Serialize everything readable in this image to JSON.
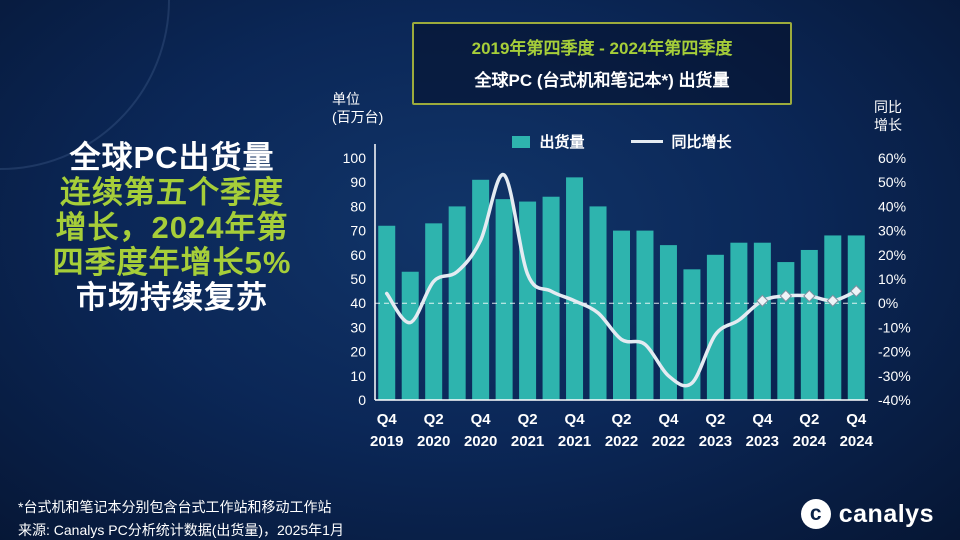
{
  "colors": {
    "background_center": "#113569",
    "background_edge": "#061634",
    "bar": "#2eb4ae",
    "line": "#e4ebf2",
    "accent_green": "#a6ce39",
    "box_border": "#9cab3c"
  },
  "headline": {
    "lines": [
      {
        "text": "全球PC出货量",
        "color": "white"
      },
      {
        "text": "连续第五个季度",
        "color": "green"
      },
      {
        "text": "增长，2024年第",
        "color": "green"
      },
      {
        "text": "四季度年增长5%",
        "color": "green"
      },
      {
        "text": "市场持续复苏",
        "color": "white"
      }
    ]
  },
  "title_box": {
    "line1": "2019年第四季度 - 2024年第四季度",
    "line2": "全球PC (台式机和笔记本*) 出货量"
  },
  "axis_titles": {
    "left_line1": "单位",
    "left_line2": "(百万台)",
    "right_line1": "同比",
    "right_line2": "增长"
  },
  "legend": {
    "bars": "出货量",
    "line": "同比增长"
  },
  "chart_data": {
    "type": "bar",
    "title": "全球PC (台式机和笔记本*) 出货量",
    "categories": [
      "Q4 2019",
      "Q1 2020",
      "Q2 2020",
      "Q3 2020",
      "Q4 2020",
      "Q1 2021",
      "Q2 2021",
      "Q3 2021",
      "Q4 2021",
      "Q1 2022",
      "Q2 2022",
      "Q3 2022",
      "Q4 2022",
      "Q1 2023",
      "Q2 2023",
      "Q3 2023",
      "Q4 2023",
      "Q1 2024",
      "Q2 2024",
      "Q3 2024",
      "Q4 2024"
    ],
    "series": [
      {
        "name": "出货量",
        "type": "bar",
        "axis": "left",
        "unit": "百万台",
        "values": [
          72,
          53,
          73,
          80,
          91,
          83,
          82,
          84,
          92,
          80,
          70,
          70,
          64,
          54,
          60,
          65,
          65,
          57,
          62,
          68,
          68
        ]
      },
      {
        "name": "同比增长",
        "type": "line",
        "axis": "right",
        "unit": "%",
        "values": [
          4,
          -8,
          9,
          13,
          26,
          53,
          12,
          5,
          1,
          -4,
          -15,
          -17,
          -30,
          -33,
          -13,
          -7,
          1,
          3,
          3,
          1,
          5
        ],
        "markers_from_index": 16
      }
    ],
    "left_axis": {
      "min": 0,
      "max": 100,
      "step": 10
    },
    "right_axis": {
      "min": -40,
      "max": 60,
      "step": 10,
      "suffix": "%"
    },
    "x_tick_labels": [
      {
        "index": 0,
        "q": "Q4",
        "year": "2019"
      },
      {
        "index": 2,
        "q": "Q2",
        "year": "2020"
      },
      {
        "index": 4,
        "q": "Q4",
        "year": "2020"
      },
      {
        "index": 6,
        "q": "Q2",
        "year": "2021"
      },
      {
        "index": 8,
        "q": "Q4",
        "year": "2021"
      },
      {
        "index": 10,
        "q": "Q2",
        "year": "2022"
      },
      {
        "index": 12,
        "q": "Q4",
        "year": "2022"
      },
      {
        "index": 14,
        "q": "Q2",
        "year": "2023"
      },
      {
        "index": 16,
        "q": "Q4",
        "year": "2023"
      },
      {
        "index": 18,
        "q": "Q2",
        "year": "2024"
      },
      {
        "index": 20,
        "q": "Q4",
        "year": "2024"
      }
    ],
    "zero_reference_line": true,
    "legend_position": "top",
    "grid": false
  },
  "footer": {
    "note1": "*台式机和笔记本分别包含台式工作站和移动工作站",
    "note2": "来源: Canalys PC分析统计数据(出货量)，2025年1月"
  },
  "logo": {
    "text": "canalys",
    "mark": "c"
  }
}
